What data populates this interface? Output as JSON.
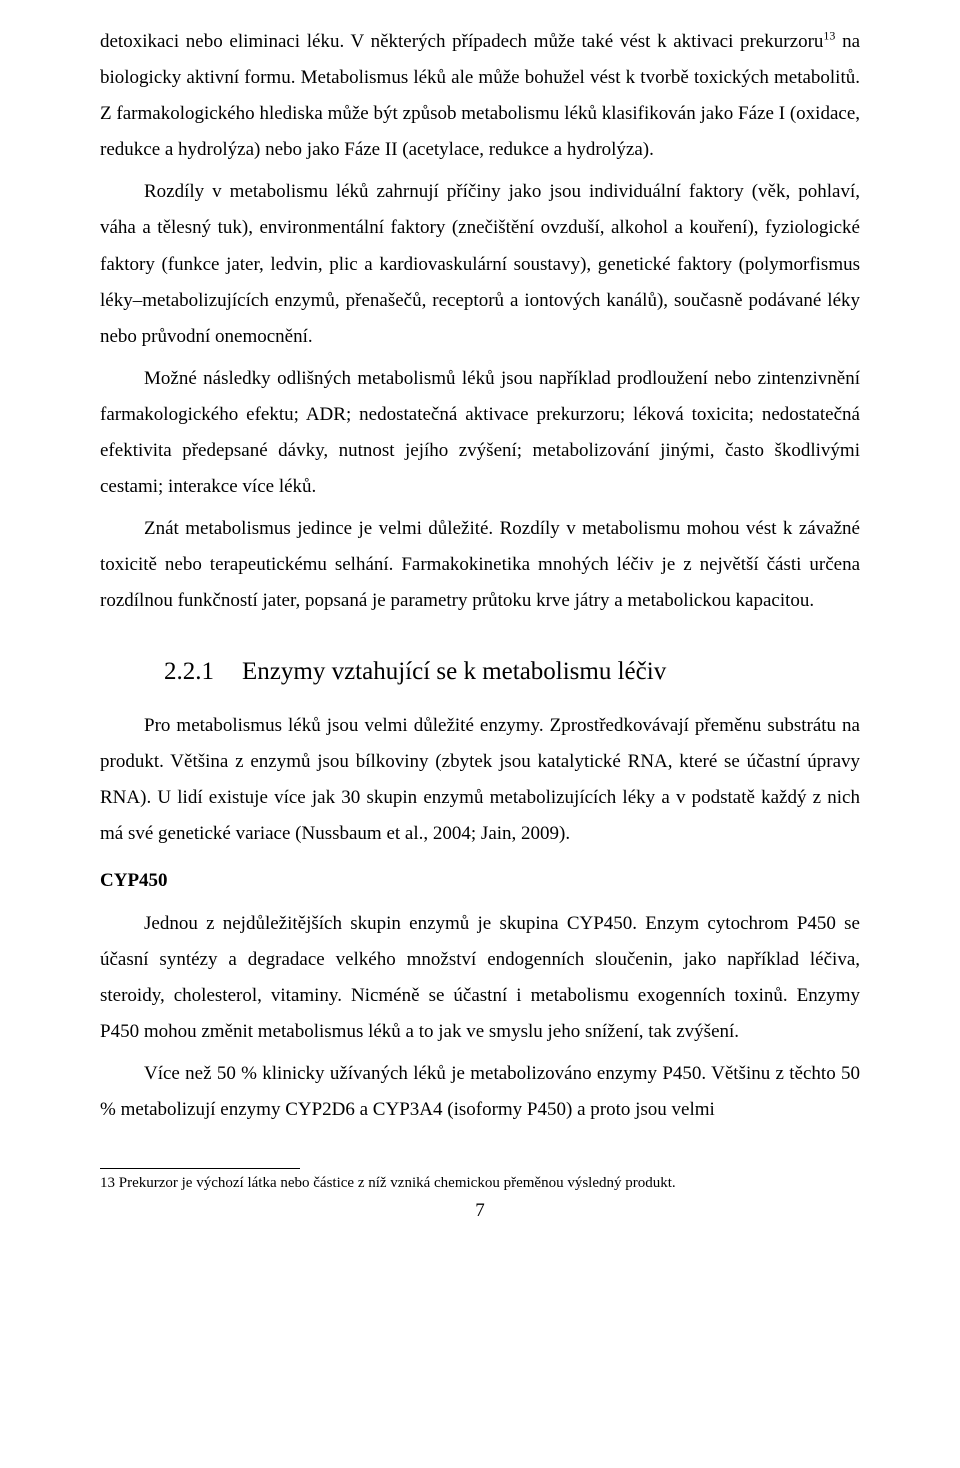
{
  "body": {
    "p1_a": "detoxikaci nebo eliminaci léku. V některých případech může také vést k aktivaci prekurzoru",
    "p1_sup": "13",
    "p1_b": " na biologicky aktivní formu. Metabolismus léků ale může bohužel vést k tvorbě toxických metabolitů. Z farmakologického hlediska může být způsob metabolismu léků klasifikován jako Fáze I (oxidace, redukce a hydrolýza) nebo jako Fáze II (acetylace, redukce a hydrolýza).",
    "p2": "Rozdíly v metabolismu léků zahrnují příčiny jako jsou individuální faktory (věk, pohlaví, váha a tělesný tuk), environmentální faktory (znečištění ovzduší, alkohol a kouření), fyziologické faktory (funkce jater, ledvin, plic a kardiovaskulární soustavy), genetické faktory (polymorfismus léky–metabolizujících enzymů, přenašečů, receptorů a iontových kanálů), současně podávané léky nebo průvodní onemocnění.",
    "p3": "Možné následky odlišných metabolismů léků jsou například prodloužení nebo zintenzivnění farmakologického efektu; ADR; nedostatečná aktivace prekurzoru; léková toxicita; nedostatečná efektivita předepsané dávky, nutnost jejího zvýšení; metabolizování jinými, často škodlivými cestami; interakce více léků.",
    "p4": "Znát metabolismus jedince je velmi důležité. Rozdíly v metabolismu mohou vést k závažné toxicitě nebo terapeutickému selhání. Farmakokinetika mnohých léčiv je z největší části určena rozdílnou funkčností jater, popsaná je parametry průtoku krve játry a metabolickou kapacitou."
  },
  "heading": {
    "number": "2.2.1",
    "title": "Enzymy vztahující se k metabolismu léčiv"
  },
  "section2": {
    "p1": "Pro metabolismus léků jsou velmi důležité enzymy. Zprostředkovávají přeměnu substrátu na produkt. Většina z enzymů jsou bílkoviny (zbytek jsou katalytické RNA, které se účastní úpravy RNA). U lidí existuje více jak 30 skupin enzymů metabolizujících léky a v podstatě každý z nich má své genetické variace (Nussbaum et al., 2004; Jain, 2009).",
    "cyp_label": "CYP450",
    "p2": "Jednou z nejdůležitějších skupin enzymů je skupina CYP450. Enzym cytochrom P450 se účasní syntézy a degradace velkého množství endogenních sloučenin, jako například léčiva, steroidy, cholesterol, vitaminy. Nicméně se účastní i metabolismu exogenních toxinů. Enzymy P450 mohou změnit metabolismus léků a to jak ve smyslu jeho snížení, tak zvýšení.",
    "p3": "Více než 50 % klinicky užívaných léků je metabolizováno enzymy P450. Většinu z těchto 50 % metabolizují enzymy CYP2D6 a CYP3A4 (isoformy P450) a proto jsou velmi"
  },
  "footnote": {
    "num": "13",
    "text": " Prekurzor je výchozí látka nebo částice z níž vzniká chemickou přeměnou výsledný produkt."
  },
  "page_number": "7"
}
